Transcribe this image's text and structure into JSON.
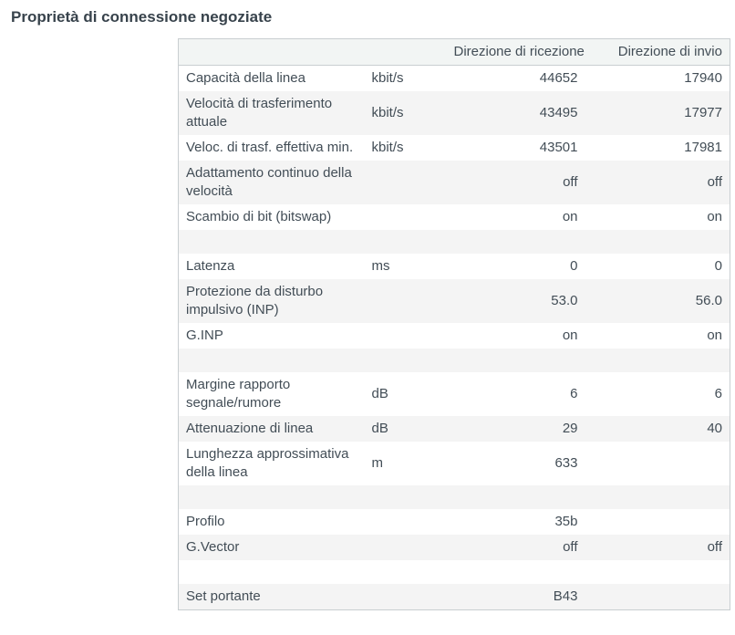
{
  "page": {
    "title": "Proprietà di connessione negoziate"
  },
  "colors": {
    "text": "#424d56",
    "title": "#38434c",
    "zebra_row_bg": "#f4f4f4",
    "header_bg": "#f2f5f4",
    "table_border": "#c9ced1"
  },
  "table": {
    "headers": {
      "property": "",
      "unit": "",
      "rx": "Direzione di ricezione",
      "tx": "Direzione di invio"
    },
    "rows": [
      {
        "label": "Capacità della linea",
        "unit": "kbit/s",
        "rx": "44652",
        "tx": "17940"
      },
      {
        "label": "Velocità di trasferimento attuale",
        "unit": "kbit/s",
        "rx": "43495",
        "tx": "17977"
      },
      {
        "label": "Veloc. di trasf. effettiva min.",
        "unit": "kbit/s",
        "rx": "43501",
        "tx": "17981"
      },
      {
        "label": "Adattamento continuo della velocità",
        "unit": "",
        "rx": "off",
        "tx": "off"
      },
      {
        "label": "Scambio di bit (bitswap)",
        "unit": "",
        "rx": "on",
        "tx": "on"
      },
      {
        "label": "",
        "unit": "",
        "rx": "",
        "tx": ""
      },
      {
        "label": "Latenza",
        "unit": "ms",
        "rx": "0",
        "tx": "0"
      },
      {
        "label": "Protezione da disturbo impulsivo (INP)",
        "unit": "",
        "rx": "53.0",
        "tx": "56.0"
      },
      {
        "label": "G.INP",
        "unit": "",
        "rx": "on",
        "tx": "on"
      },
      {
        "label": "",
        "unit": "",
        "rx": "",
        "tx": ""
      },
      {
        "label": "Margine rapporto segnale/rumore",
        "unit": "dB",
        "rx": "6",
        "tx": "6"
      },
      {
        "label": "Attenuazione di linea",
        "unit": "dB",
        "rx": "29",
        "tx": "40"
      },
      {
        "label": "Lunghezza approssimativa della linea",
        "unit": "m",
        "rx": "633",
        "tx": ""
      },
      {
        "label": "",
        "unit": "",
        "rx": "",
        "tx": ""
      },
      {
        "label": "Profilo",
        "unit": "",
        "rx": "35b",
        "tx": ""
      },
      {
        "label": "G.Vector",
        "unit": "",
        "rx": "off",
        "tx": "off"
      },
      {
        "label": "",
        "unit": "",
        "rx": "",
        "tx": ""
      },
      {
        "label": "Set portante",
        "unit": "",
        "rx": "B43",
        "tx": ""
      }
    ]
  }
}
